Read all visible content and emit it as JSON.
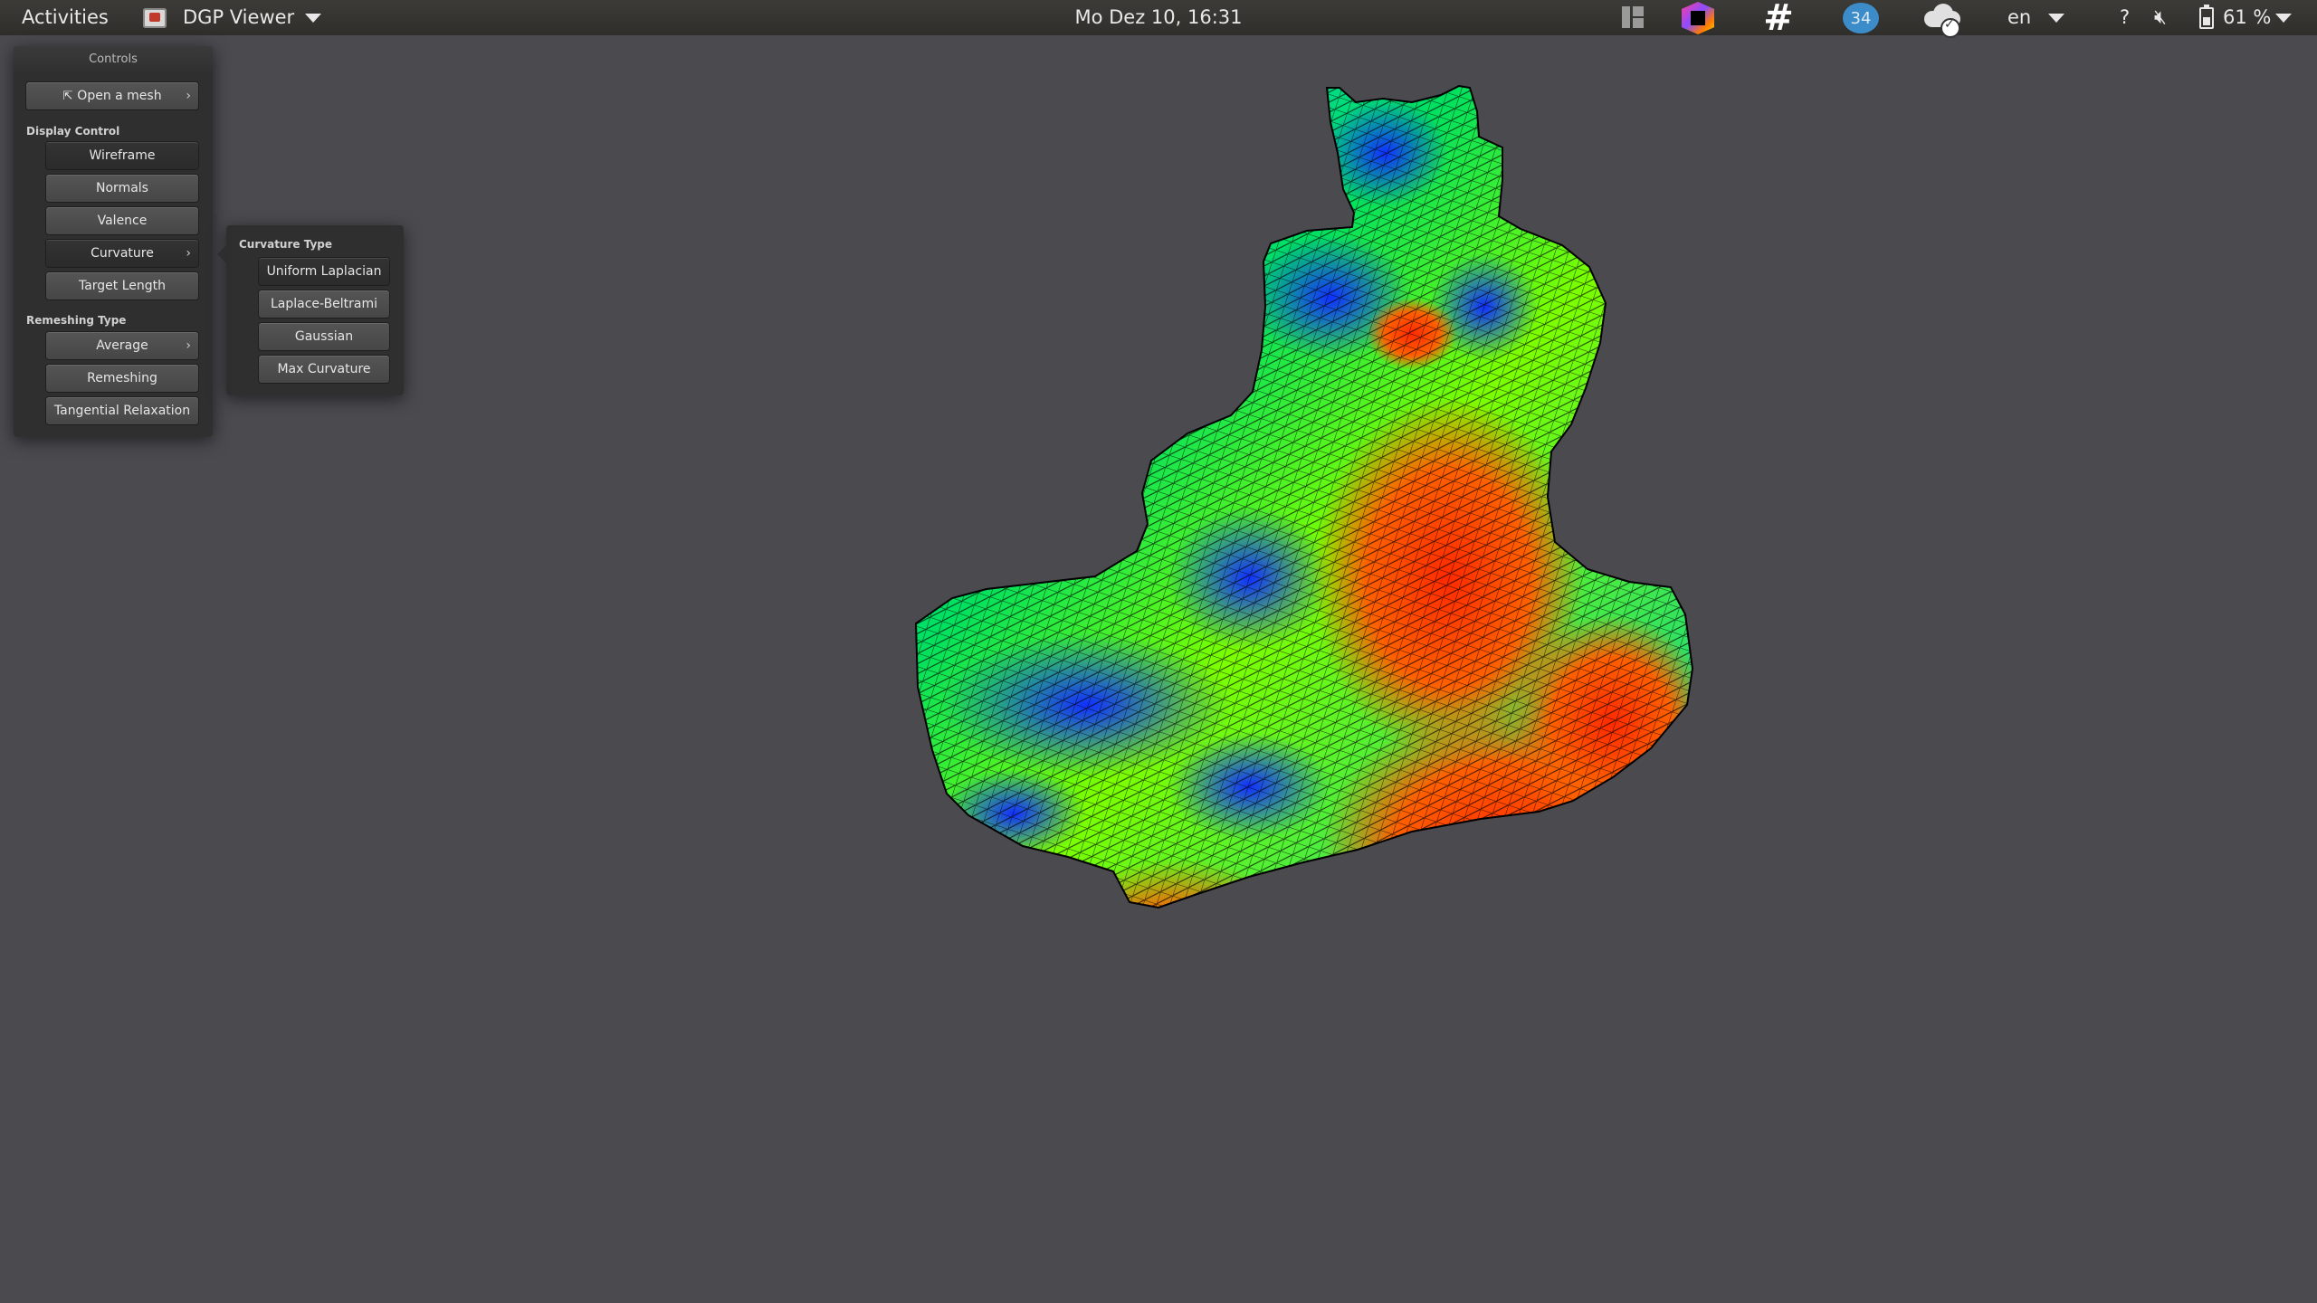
{
  "topbar": {
    "activities": "Activities",
    "app_name": "DGP Viewer",
    "clock": "Mo Dez 10, 16:31",
    "badge_count": "34",
    "language": "en",
    "help": "?",
    "battery": "61 %",
    "icons": {
      "app": "dgp-viewer-icon",
      "layout": "workspace-layout-icon",
      "jetbrains": "jetbrains-toolbox-icon",
      "slack": "slack-icon",
      "badge": "notification-badge-icon",
      "cloud": "cloud-sync-icon",
      "volume": "volume-muted-icon",
      "battery": "battery-icon"
    }
  },
  "controls": {
    "title": "Controls",
    "open_mesh": "Open a mesh",
    "open_mesh_icon": "export-icon",
    "display_control_label": "Display Control",
    "wireframe": "Wireframe",
    "normals": "Normals",
    "valence": "Valence",
    "curvature": "Curvature",
    "target_length": "Target Length",
    "remeshing_type_label": "Remeshing Type",
    "average": "Average",
    "remeshing": "Remeshing",
    "tangential_relaxation": "Tangential Relaxation"
  },
  "curvature_popup": {
    "label": "Curvature Type",
    "options": [
      "Uniform Laplacian",
      "Laplace-Beltrami",
      "Gaussian",
      "Max Curvature"
    ]
  },
  "scene": {
    "background": "#4a4a4f",
    "mesh_colormap": [
      "#0a2cff",
      "#00aaff",
      "#00e060",
      "#7cff00",
      "#ffb000",
      "#ff2a00"
    ],
    "wire_color": "#000000"
  }
}
